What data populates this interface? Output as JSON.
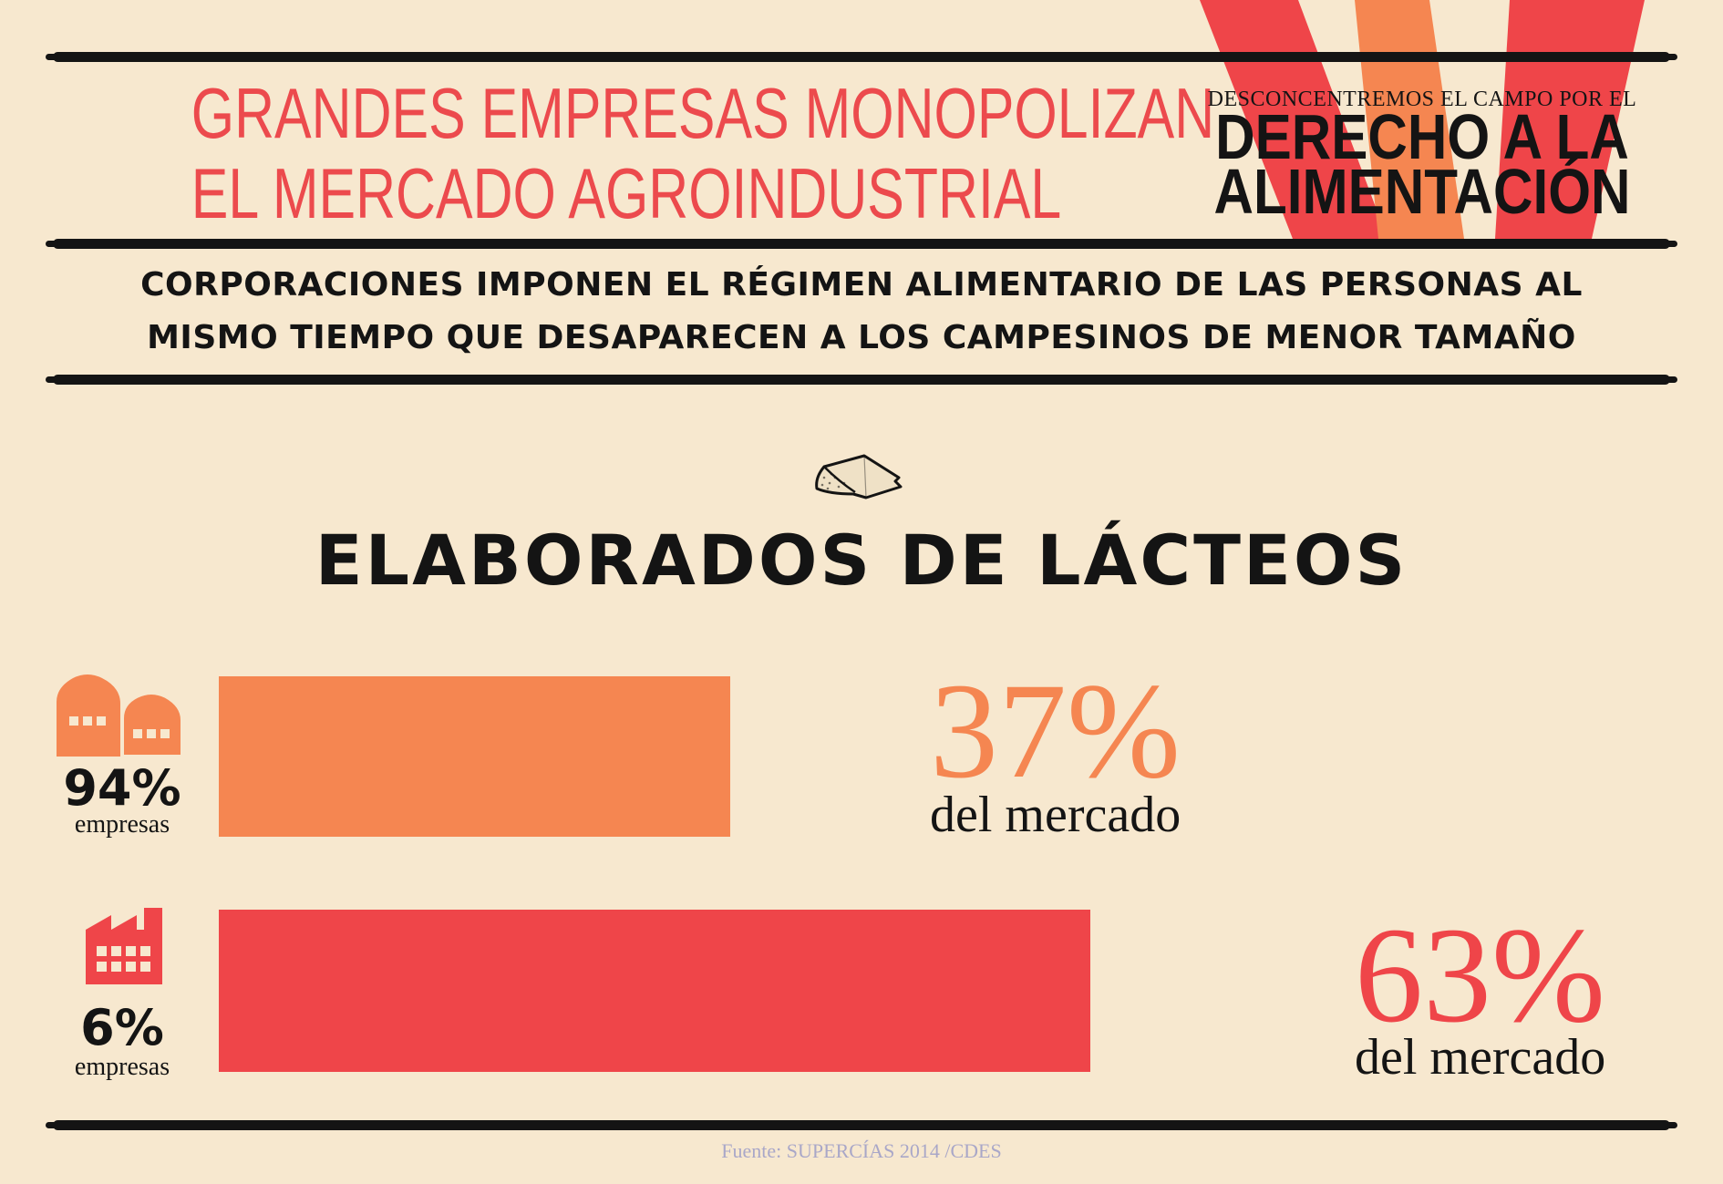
{
  "header": {
    "title_line1": "GRANDES EMPRESAS MONOPOLIZAN",
    "title_line2": "EL MERCADO AGROINDUSTRIAL",
    "brand_pre": "DESCONCENTREMOS EL CAMPO POR EL",
    "brand_line1": "DERECHO A LA",
    "brand_line2": "ALIMENTACIÓN"
  },
  "subtitle": {
    "line1": "CORPORACIONES IMPONEN EL RÉGIMEN ALIMENTARIO DE LAS PERSONAS AL",
    "line2": "MISMO TIEMPO QUE DESAPARECEN A LOS CAMPESINOS DE MENOR TAMAÑO"
  },
  "icons": {
    "category": "cheese-icon",
    "small_companies": "houses-icon",
    "large_companies": "factory-icon"
  },
  "colors": {
    "background": "#f7e8cf",
    "accent_red": "#ef4549",
    "accent_orange": "#f58651",
    "text": "#141414",
    "source": "#a9a7c8"
  },
  "chart_data": {
    "type": "bar",
    "orientation": "horizontal",
    "title": "ELABORADOS  DE LÁCTEOS",
    "categories": [
      "94% empresas",
      "6% empresas"
    ],
    "values": [
      37,
      63
    ],
    "unit": "%",
    "xlim": [
      0,
      100
    ],
    "bars": [
      {
        "group_pct": "94%",
        "group_label": "empresas",
        "value": 37,
        "value_label": "37%",
        "value_caption": "del mercado",
        "color": "#f58651",
        "icon": "houses-icon"
      },
      {
        "group_pct": "6%",
        "group_label": "empresas",
        "value": 63,
        "value_label": "63%",
        "value_caption": "del mercado",
        "color": "#ef4549",
        "icon": "factory-icon"
      }
    ],
    "grid": false,
    "legend": "none"
  },
  "footer": {
    "source": "Fuente: SUPERCÍAS 2014 /CDES"
  }
}
